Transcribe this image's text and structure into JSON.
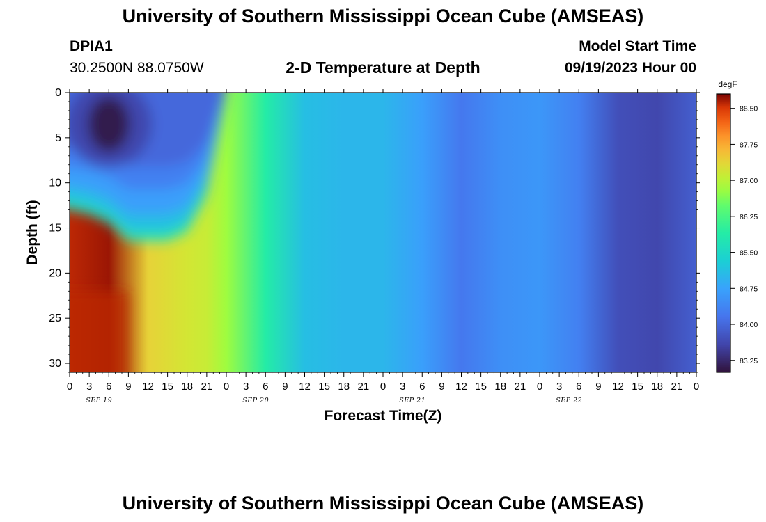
{
  "header": {
    "title": "University of Southern Mississippi Ocean Cube (AMSEAS)",
    "station_id": "DPIA1",
    "station_coords": "30.2500N  88.0750W",
    "plot_title": "2-D Temperature at Depth",
    "model_start_label": "Model Start Time",
    "model_start_value": "09/19/2023 Hour 00"
  },
  "footer": {
    "title": "University of Southern Mississippi Ocean Cube (AMSEAS)"
  },
  "chart_data": {
    "type": "heatmap",
    "title": "2-D Temperature at Depth",
    "xlabel": "Forecast Time(Z)",
    "ylabel": "Depth (ft)",
    "x_tick_labels": [
      "0",
      "3",
      "6",
      "9",
      "12",
      "15",
      "18",
      "21",
      "0",
      "3",
      "6",
      "9",
      "12",
      "15",
      "18",
      "21",
      "0",
      "3",
      "6",
      "9",
      "12",
      "15",
      "18",
      "21",
      "0",
      "3",
      "6",
      "9",
      "12",
      "15",
      "18",
      "21",
      "0"
    ],
    "x_range_hours": [
      0,
      96
    ],
    "date_labels": [
      "SEP 19",
      "SEP 20",
      "SEP 21",
      "SEP 22"
    ],
    "y_tick_labels": [
      "0",
      "5",
      "10",
      "15",
      "20",
      "25",
      "30"
    ],
    "ylim": [
      0,
      31
    ],
    "y_inverted": true,
    "colorbar": {
      "unit": "degF",
      "range": [
        83.0,
        88.8
      ],
      "tick_values": [
        88.5,
        87.75,
        87.0,
        86.25,
        85.5,
        84.75,
        84.0,
        83.25
      ],
      "tick_labels": [
        "88.50",
        "87.75",
        "87.00",
        "86.25",
        "85.50",
        "84.75",
        "84.00",
        "83.25"
      ]
    },
    "deep_temperature_profile": {
      "hours": [
        0,
        6,
        12,
        18,
        21,
        24,
        30,
        36,
        42,
        48,
        54,
        60,
        66,
        72,
        78,
        84,
        90,
        96
      ],
      "values_degF": [
        88.6,
        88.7,
        87.4,
        87.2,
        87.1,
        86.8,
        85.9,
        85.1,
        85.0,
        85.0,
        84.7,
        84.2,
        84.5,
        84.6,
        84.3,
        83.7,
        83.6,
        83.9
      ]
    },
    "surface_cold_feature": {
      "hours": [
        0,
        3,
        6,
        9,
        12,
        15,
        18,
        21,
        24
      ],
      "depth_ft": [
        12,
        13,
        14,
        16,
        16,
        16,
        15,
        11,
        0
      ],
      "core_hour": 6,
      "core_depth_ft": 3.5,
      "core_value_degF": 83.1
    }
  }
}
